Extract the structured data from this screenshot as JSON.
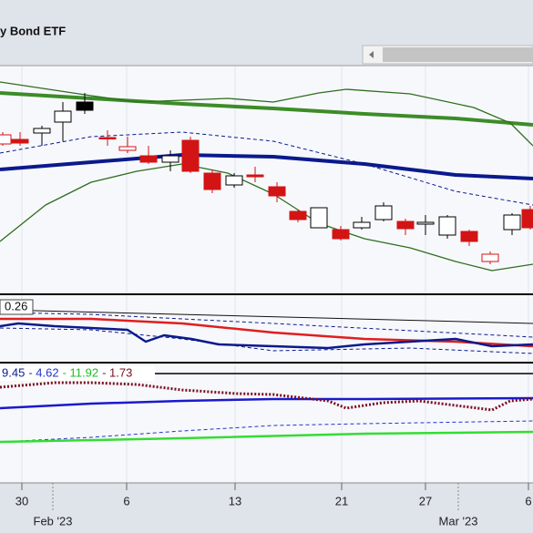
{
  "chart_data": [
    {
      "type": "candlestick",
      "title": "y Bond ETF",
      "xlim": [
        0,
        585
      ],
      "ylim": [
        0,
        250
      ],
      "candles": {
        "x": [
          3,
          22,
          46,
          69,
          93,
          118,
          140,
          163,
          187,
          209,
          233,
          257,
          280,
          304,
          327,
          350,
          374,
          397,
          421,
          445,
          467,
          491,
          515,
          538,
          562,
          582
        ],
        "open": [
          164,
          169,
          176,
          188,
          210,
          171,
          157,
          151,
          144,
          168,
          132,
          119,
          130,
          117,
          90,
          72,
          70,
          72,
          81,
          79,
          76,
          64,
          68,
          35,
          70,
          92
        ],
        "high": [
          177,
          177,
          184,
          210,
          220,
          179,
          172,
          162,
          157,
          172,
          136,
          132,
          139,
          122,
          92,
          94,
          74,
          84,
          100,
          82,
          86,
          86,
          70,
          46,
          88,
          96
        ],
        "low": [
          162,
          162,
          162,
          167,
          197,
          162,
          154,
          142,
          134,
          132,
          110,
          116,
          122,
          100,
          78,
          72,
          58,
          70,
          79,
          64,
          64,
          60,
          52,
          32,
          64,
          70
        ],
        "close": [
          174,
          165,
          181,
          200,
          201,
          170,
          161,
          144,
          151,
          134,
          114,
          129,
          128,
          107,
          81,
          94,
          60,
          78,
          96,
          71,
          78,
          84,
          57,
          43,
          86,
          72
        ],
        "colors": [
          "#d21414",
          "#d21414",
          "#000000",
          "#000000",
          "#000000",
          "#d21414",
          "#d21414",
          "#d21414",
          "#000000",
          "#d21414",
          "#d21414",
          "#000000",
          "#d21414",
          "#d21414",
          "#d21414",
          "#000000",
          "#d21414",
          "#000000",
          "#000000",
          "#d21414",
          "#000000",
          "#000000",
          "#d21414",
          "#d21414",
          "#000000",
          "#d21414"
        ]
      },
      "series": [
        {
          "color": "#3c8c28",
          "width": 4,
          "x": [
            0,
            100,
            200,
            300,
            400,
            500,
            585
          ],
          "values": [
            220,
            214,
            208,
            203,
            197,
            192,
            185
          ]
        },
        {
          "color": "#0a1a8c",
          "width": 4,
          "x": [
            0,
            100,
            200,
            300,
            400,
            500,
            585
          ],
          "values": [
            136,
            144,
            152,
            150,
            142,
            130,
            126
          ]
        },
        {
          "color": "#0a1a8c",
          "width": 1,
          "dash": true,
          "x": [
            0,
            100,
            200,
            300,
            400,
            500,
            585
          ],
          "values": [
            154,
            172,
            177,
            167,
            142,
            112,
            97
          ]
        },
        {
          "color": "#2e6e1e",
          "width": 1.3,
          "x": [
            0,
            100,
            150,
            250,
            300,
            350,
            380,
            450,
            520,
            560,
            585
          ],
          "values": [
            232,
            217,
            210,
            214,
            210,
            220,
            224,
            219,
            204,
            187,
            162
          ]
        },
        {
          "color": "#2e6e1e",
          "width": 1.3,
          "x": [
            0,
            50,
            100,
            150,
            200,
            250,
            300,
            350,
            400,
            450,
            500,
            540,
            585
          ],
          "values": [
            57,
            97,
            122,
            134,
            142,
            132,
            109,
            77,
            60,
            50,
            35,
            25,
            32
          ]
        }
      ]
    },
    {
      "type": "line",
      "label": "0.26",
      "xlim": [
        0,
        585
      ],
      "ylim": [
        0,
        72
      ],
      "series": [
        {
          "color": "#111111",
          "width": 1,
          "x": [
            0,
            585
          ],
          "values": [
            57,
            42
          ]
        },
        {
          "color": "#0a1a8c",
          "width": 1,
          "dash": true,
          "x": [
            0,
            100,
            300,
            585
          ],
          "values": [
            54,
            52,
            42,
            27
          ]
        },
        {
          "color": "#0a1a8c",
          "width": 1,
          "dash": true,
          "x": [
            0,
            100,
            200,
            300,
            450,
            585
          ],
          "values": [
            37,
            35,
            25,
            12,
            15,
            9
          ]
        },
        {
          "color": "#e01e1e",
          "width": 2.5,
          "x": [
            0,
            100,
            200,
            300,
            400,
            500,
            585
          ],
          "values": [
            47,
            47,
            42,
            32,
            25,
            22,
            17
          ]
        },
        {
          "color": "#0a1a8c",
          "width": 2.5,
          "x": [
            0,
            20,
            60,
            100,
            140,
            160,
            180,
            210,
            240,
            300,
            360,
            400,
            450,
            500,
            540,
            585
          ],
          "values": [
            39,
            42,
            39,
            37,
            35,
            22,
            29,
            25,
            19,
            17,
            15,
            19,
            22,
            25,
            17,
            19
          ]
        }
      ]
    },
    {
      "type": "line",
      "xlim": [
        0,
        585
      ],
      "ylim": [
        0,
        130
      ],
      "labels": [
        {
          "text": "9.45",
          "color": "#0a1a8c"
        },
        {
          "text": "- 4.62",
          "color": "#2233cc"
        },
        {
          "text": "- 11.92",
          "color": "#22bb22"
        },
        {
          "text": "- 1.73",
          "color": "#7a1020"
        }
      ],
      "xticks": [
        {
          "value": 24,
          "label": "30"
        },
        {
          "value": 139,
          "label": "6"
        },
        {
          "value": 258,
          "label": "13"
        },
        {
          "value": 375,
          "label": "21"
        },
        {
          "value": 467,
          "label": "27"
        },
        {
          "value": 580,
          "label": "6"
        }
      ],
      "month_ticks": [
        {
          "value": 58,
          "label": "Feb '23"
        },
        {
          "value": 503,
          "label": "Mar '23"
        }
      ],
      "series": [
        {
          "color": "#2233cc",
          "width": 1,
          "dash": true,
          "x": [
            0,
            100,
            200,
            300,
            400,
            585
          ],
          "values": [
            45,
            50,
            57,
            63,
            65,
            68
          ]
        },
        {
          "color": "#33dd33",
          "width": 2.5,
          "x": [
            0,
            200,
            400,
            585
          ],
          "values": [
            45,
            49,
            54,
            56
          ]
        },
        {
          "color": "#1a1acc",
          "width": 2.5,
          "x": [
            0,
            100,
            200,
            300,
            400,
            585
          ],
          "values": [
            82,
            87,
            90,
            92,
            92,
            93
          ]
        },
        {
          "color": "#7a1020",
          "width": 3,
          "dot": true,
          "x": [
            0,
            60,
            100,
            150,
            200,
            260,
            300,
            360,
            380,
            420,
            460,
            500,
            540,
            560,
            585
          ],
          "values": [
            105,
            110,
            110,
            108,
            102,
            98,
            97,
            90,
            82,
            88,
            90,
            85,
            80,
            90,
            92
          ]
        }
      ]
    }
  ]
}
